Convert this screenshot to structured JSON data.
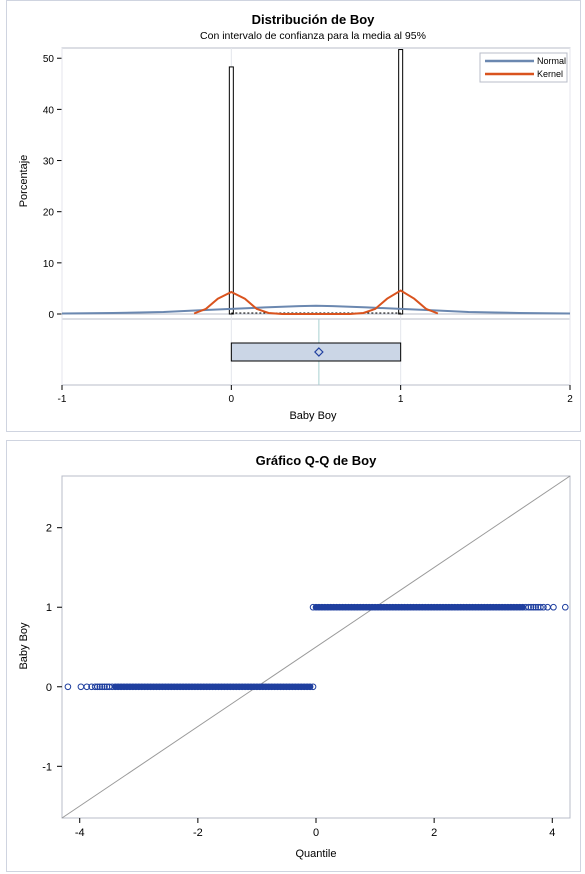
{
  "chart_data": [
    {
      "type": "histogram",
      "title": "Distribución de Boy",
      "subtitle": "Con intervalo de confianza para la media al 95%",
      "xlabel": "Baby Boy",
      "ylabel": "Porcentaje",
      "xlim": [
        -1,
        2
      ],
      "ylim": [
        0,
        52
      ],
      "xticks": [
        "-1",
        "0",
        "1",
        "2"
      ],
      "yticks": [
        "0",
        "10",
        "20",
        "30",
        "40",
        "50"
      ],
      "bins": [
        {
          "x": 0,
          "percent": 48.3
        },
        {
          "x": 1,
          "percent": 51.7
        }
      ],
      "series": [
        {
          "name": "Normal",
          "color": "#6b88b0",
          "x": [
            -1.0,
            -0.7,
            -0.4,
            -0.2,
            0.0,
            0.2,
            0.4,
            0.5,
            0.6,
            0.8,
            1.0,
            1.2,
            1.4,
            1.7,
            2.0
          ],
          "y": [
            0.1,
            0.2,
            0.4,
            0.7,
            1.0,
            1.3,
            1.55,
            1.6,
            1.55,
            1.3,
            1.0,
            0.7,
            0.4,
            0.2,
            0.1
          ]
        },
        {
          "name": "Kernel",
          "color": "#d9531e",
          "x": [
            -0.22,
            -0.15,
            -0.08,
            0.0,
            0.08,
            0.15,
            0.22,
            0.3,
            0.7,
            0.78,
            0.85,
            0.92,
            1.0,
            1.08,
            1.15,
            1.22
          ],
          "y": [
            0.1,
            1.0,
            3.0,
            4.3,
            3.0,
            1.0,
            0.2,
            0.0,
            0.0,
            0.2,
            1.0,
            3.0,
            4.6,
            3.0,
            1.0,
            0.1
          ]
        }
      ],
      "boxplot": {
        "q1": 0,
        "median": 1,
        "q3": 1,
        "mean": 0.517,
        "min": 0,
        "max": 1
      },
      "legend": {
        "position": "top-right",
        "entries": [
          "Normal",
          "Kernel"
        ]
      }
    },
    {
      "type": "scatter",
      "title": "Gráfico Q-Q de Boy",
      "xlabel": "Quantile",
      "ylabel": "Baby Boy",
      "xlim": [
        -4.3,
        4.3
      ],
      "ylim": [
        -1.65,
        2.65
      ],
      "xticks": [
        "-4",
        "-2",
        "0",
        "2",
        "4"
      ],
      "yticks": [
        "-1",
        "0",
        "1",
        "2"
      ],
      "point_color": "#1f3f9f",
      "groups": [
        {
          "y": 0,
          "x_from": -3.45,
          "x_to": -0.05,
          "outliers_x": [
            -4.2,
            -3.98,
            -3.88,
            -3.8,
            -3.74,
            -3.7,
            -3.66,
            -3.62,
            -3.58,
            -3.54,
            -3.5
          ]
        },
        {
          "y": 1,
          "x_from": -0.05,
          "x_to": 3.55,
          "outliers_x": [
            3.6,
            3.64,
            3.68,
            3.72,
            3.76,
            3.8,
            3.85,
            3.92,
            4.02,
            4.22
          ]
        }
      ],
      "reference_line": {
        "intercept": 0.5,
        "slope": 0.5
      }
    }
  ]
}
